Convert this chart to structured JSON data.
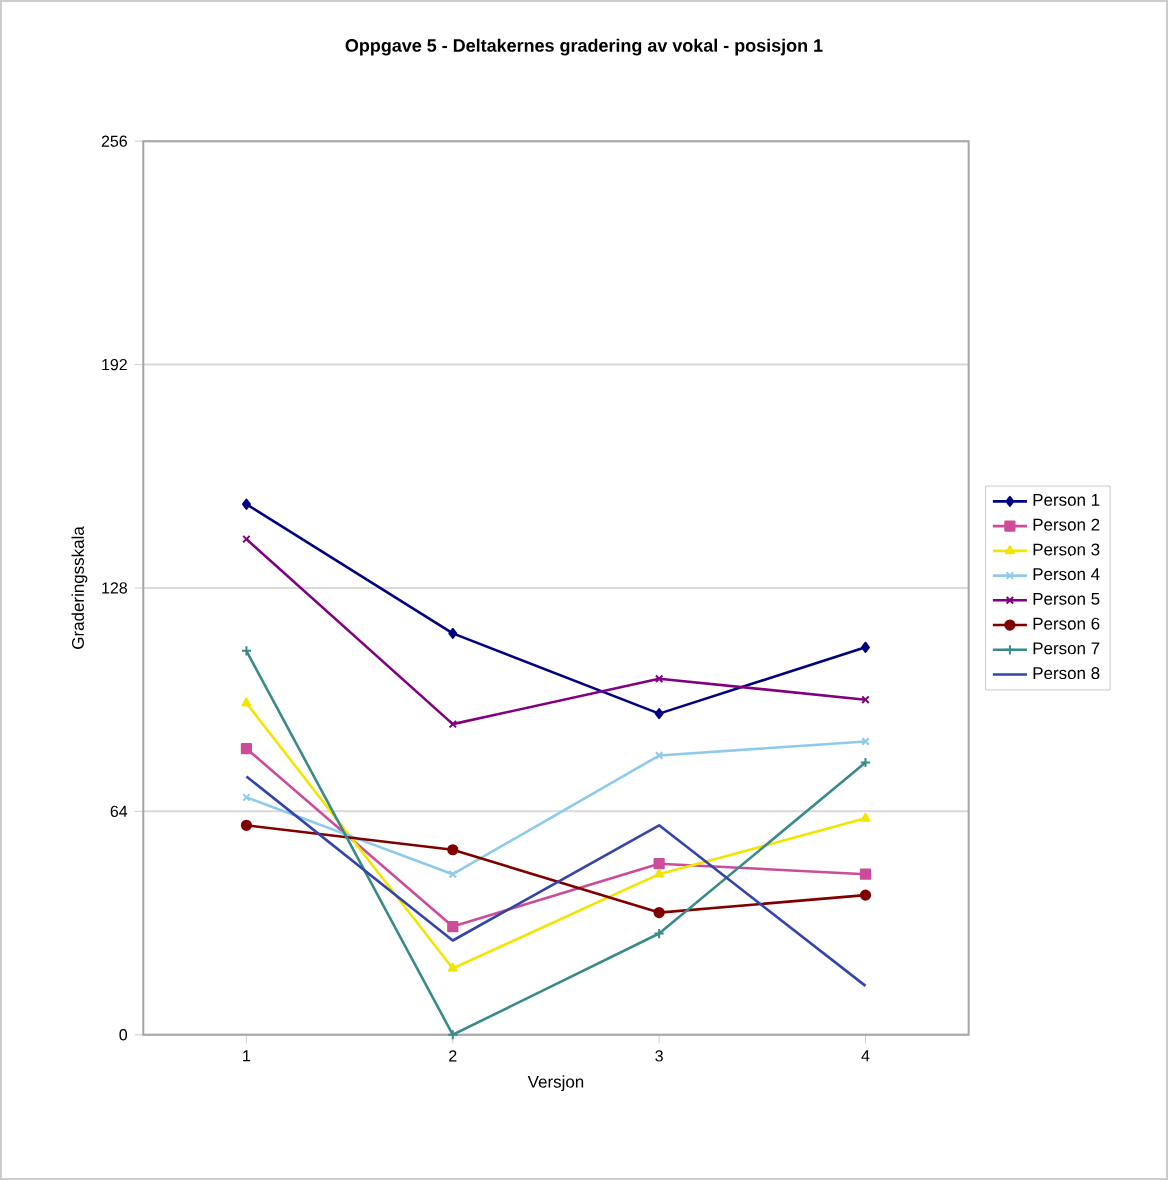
{
  "chart_data": {
    "type": "line",
    "title": "Oppgave 5 - Deltakernes gradering av vokal - posisjon 1",
    "xlabel": "Versjon",
    "ylabel": "Graderingsskala",
    "categories": [
      "1",
      "2",
      "3",
      "4"
    ],
    "ylim": [
      0,
      256
    ],
    "yticks": [
      0,
      64,
      128,
      192,
      256
    ],
    "grid": "y",
    "legend": "right",
    "line_style": "solid",
    "series": [
      {
        "name": "Person 1",
        "color": "#000080",
        "marker": "diamond",
        "values": [
          152,
          115,
          92,
          111
        ]
      },
      {
        "name": "Person 2",
        "color": "#cc4c99",
        "marker": "square",
        "values": [
          82,
          31,
          49,
          46
        ]
      },
      {
        "name": "Person 3",
        "color": "#f2e600",
        "marker": "triangle",
        "values": [
          95,
          19,
          46,
          62
        ]
      },
      {
        "name": "Person 4",
        "color": "#8ecbea",
        "marker": "cross",
        "values": [
          68,
          46,
          80,
          84
        ]
      },
      {
        "name": "Person 5",
        "color": "#800080",
        "marker": "cross",
        "values": [
          142,
          89,
          102,
          96
        ]
      },
      {
        "name": "Person 6",
        "color": "#800000",
        "marker": "circle",
        "values": [
          60,
          53,
          35,
          40
        ]
      },
      {
        "name": "Person 7",
        "color": "#3a8a8a",
        "marker": "plus",
        "values": [
          110,
          0,
          29,
          78
        ]
      },
      {
        "name": "Person 8",
        "color": "#3344aa",
        "marker": "none",
        "values": [
          74,
          27,
          60,
          14
        ]
      }
    ]
  }
}
